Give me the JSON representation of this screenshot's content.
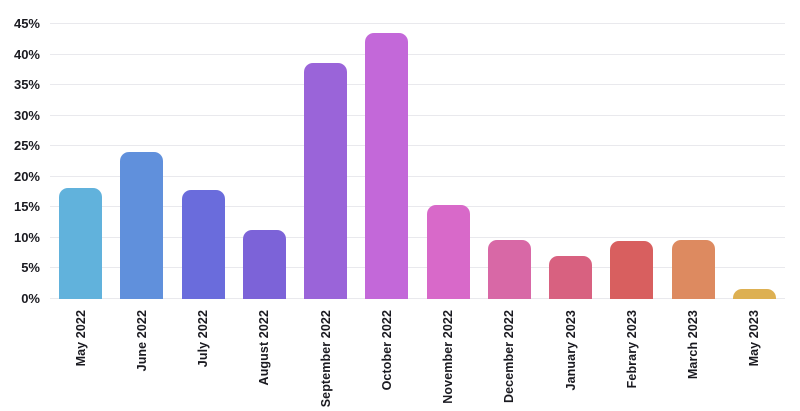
{
  "chart_data": {
    "type": "bar",
    "title": "",
    "xlabel": "",
    "ylabel": "",
    "categories": [
      "May 2022",
      "June 2022",
      "July 2022",
      "August 2022",
      "September 2022",
      "October 2022",
      "November 2022",
      "December 2022",
      "January 2023",
      "Febrary 2023",
      "March 2023",
      "May 2023"
    ],
    "values": [
      18.1,
      24.1,
      17.9,
      11.3,
      38.7,
      43.5,
      15.4,
      9.6,
      7.1,
      9.5,
      9.7,
      1.6
    ],
    "value_unit": "%",
    "bar_colors": [
      "#61b2dc",
      "#6090dc",
      "#6a6cdc",
      "#7c63d8",
      "#9a64d9",
      "#c368d9",
      "#d869c9",
      "#d868a6",
      "#d86180",
      "#d85f5f",
      "#dd8a60",
      "#ddb052"
    ],
    "ylim": [
      0,
      45
    ],
    "yticks": [
      0,
      5,
      10,
      15,
      20,
      25,
      30,
      35,
      40,
      45
    ],
    "ytick_labels": [
      "0%",
      "5%",
      "10%",
      "15%",
      "20%",
      "25%",
      "30%",
      "35%",
      "40%",
      "45%"
    ],
    "grid": true,
    "legend": false,
    "x_label_rotation": -90
  },
  "style": {
    "background": "#ffffff",
    "grid_color": "#e9e9ed",
    "axis_text_color": "#1a1a20"
  }
}
